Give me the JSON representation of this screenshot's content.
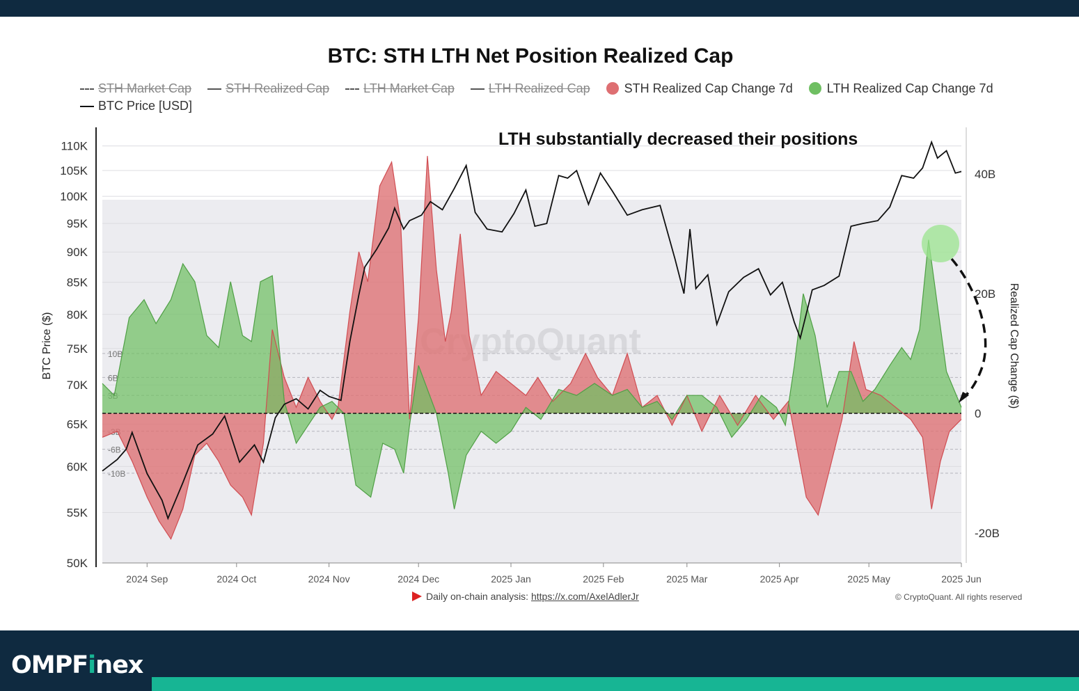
{
  "brand": {
    "prefix": "OMPF",
    "highlight": "i",
    "suffix": "nex"
  },
  "colors": {
    "sth": "#de6f72",
    "lth": "#6fbf62",
    "price": "#111111",
    "band": "#ececf0",
    "header": "#0f2a40",
    "accent": "#17b594"
  },
  "chart_data": {
    "type": "area",
    "title": "BTC: STH LTH Net Position Realized Cap",
    "annotation": "LTH substantially decreased their positions",
    "watermark": "CryptoQuant",
    "footnote": {
      "label": "Daily on-chain analysis:",
      "link": "https://x.com/AxelAdlerJr"
    },
    "copyright": "© CryptoQuant. All rights reserved",
    "legend": [
      {
        "label": "STH Market Cap",
        "style": "dash-dot",
        "active": false
      },
      {
        "label": "STH Realized Cap",
        "style": "solid",
        "active": false
      },
      {
        "label": "LTH Market Cap",
        "style": "dashed",
        "active": false
      },
      {
        "label": "LTH Realized Cap",
        "style": "solid",
        "active": false
      },
      {
        "label": "STH Realized Cap Change 7d",
        "style": "dot",
        "color": "#de6f72",
        "active": true
      },
      {
        "label": "LTH Realized Cap Change 7d",
        "style": "dot",
        "color": "#6fbf62",
        "active": true
      },
      {
        "label": "BTC Price [USD]",
        "style": "solid",
        "color": "#111111",
        "active": true
      }
    ],
    "ylabel_left": "BTC Price ($)",
    "ylabel_right": "Realized Cap Change ($)",
    "left_ticks": [
      "110K",
      "105K",
      "100K",
      "95K",
      "90K",
      "85K",
      "80K",
      "75K",
      "70K",
      "65K",
      "60K",
      "55K",
      "50K"
    ],
    "left_scale": "log",
    "ylim_left": [
      50000,
      112000
    ],
    "right_ticks": [
      "40B",
      "20B",
      "0",
      "-20B"
    ],
    "ylim_right": [
      -25,
      48
    ],
    "ref_lines": [
      "10B",
      "6B",
      "3B",
      "-3B",
      "-6B",
      "-10B"
    ],
    "x_ticks": [
      "2024 Sep",
      "2024 Oct",
      "2024 Nov",
      "2024 Dec",
      "2025 Jan",
      "2025 Feb",
      "2025 Mar",
      "2025 Apr",
      "2025 May",
      "2025 Jun"
    ],
    "xlim": [
      "2024-08-17",
      "2025-06-01"
    ],
    "series": [
      {
        "name": "BTC Price [USD]",
        "x": [
          "2024-08-17",
          "2024-08-22",
          "2024-08-25",
          "2024-08-27",
          "2024-09-01",
          "2024-09-06",
          "2024-09-08",
          "2024-09-13",
          "2024-09-18",
          "2024-09-23",
          "2024-09-27",
          "2024-10-02",
          "2024-10-07",
          "2024-10-10",
          "2024-10-14",
          "2024-10-17",
          "2024-10-21",
          "2024-10-25",
          "2024-10-29",
          "2024-11-01",
          "2024-11-05",
          "2024-11-08",
          "2024-11-11",
          "2024-11-13",
          "2024-11-17",
          "2024-11-21",
          "2024-11-23",
          "2024-11-26",
          "2024-11-28",
          "2024-12-02",
          "2024-12-05",
          "2024-12-09",
          "2024-12-13",
          "2024-12-17",
          "2024-12-20",
          "2024-12-24",
          "2024-12-29",
          "2025-01-02",
          "2025-01-06",
          "2025-01-09",
          "2025-01-13",
          "2025-01-17",
          "2025-01-20",
          "2025-01-23",
          "2025-01-27",
          "2025-01-31",
          "2025-02-04",
          "2025-02-09",
          "2025-02-14",
          "2025-02-20",
          "2025-02-25",
          "2025-02-28",
          "2025-03-02",
          "2025-03-04",
          "2025-03-08",
          "2025-03-11",
          "2025-03-15",
          "2025-03-20",
          "2025-03-25",
          "2025-03-29",
          "2025-04-02",
          "2025-04-06",
          "2025-04-08",
          "2025-04-12",
          "2025-04-16",
          "2025-04-21",
          "2025-04-25",
          "2025-04-29",
          "2025-05-04",
          "2025-05-08",
          "2025-05-12",
          "2025-05-16",
          "2025-05-19",
          "2025-05-22",
          "2025-05-24",
          "2025-05-27",
          "2025-05-30",
          "2025-06-01"
        ],
        "values": [
          59500,
          60800,
          62000,
          64000,
          59200,
          56300,
          54400,
          58200,
          62500,
          63800,
          66000,
          60500,
          62500,
          60500,
          65800,
          67500,
          68200,
          66900,
          69300,
          68500,
          68000,
          76000,
          83000,
          87500,
          90500,
          94200,
          97800,
          94000,
          95500,
          96500,
          99000,
          97500,
          101500,
          106000,
          97000,
          94000,
          93500,
          96800,
          101200,
          94500,
          95000,
          104000,
          103500,
          105000,
          98500,
          104500,
          101000,
          96500,
          97500,
          98300,
          88800,
          83200,
          94000,
          84000,
          86200,
          78500,
          83500,
          85800,
          87200,
          83000,
          85000,
          78800,
          76500,
          83800,
          84500,
          86000,
          94500,
          95000,
          95500,
          98000,
          104000,
          103500,
          105500,
          110800,
          107500,
          109000,
          104500,
          104800
        ]
      },
      {
        "name": "STH Realized Cap Change 7d",
        "x": [
          "2024-08-17",
          "2024-08-22",
          "2024-08-27",
          "2024-09-01",
          "2024-09-05",
          "2024-09-09",
          "2024-09-13",
          "2024-09-17",
          "2024-09-21",
          "2024-09-25",
          "2024-09-29",
          "2024-10-03",
          "2024-10-06",
          "2024-10-10",
          "2024-10-13",
          "2024-10-17",
          "2024-10-21",
          "2024-10-25",
          "2024-10-29",
          "2024-11-02",
          "2024-11-04",
          "2024-11-08",
          "2024-11-11",
          "2024-11-14",
          "2024-11-18",
          "2024-11-22",
          "2024-11-25",
          "2024-11-28",
          "2024-12-01",
          "2024-12-04",
          "2024-12-07",
          "2024-12-10",
          "2024-12-12",
          "2024-12-15",
          "2024-12-18",
          "2024-12-22",
          "2024-12-27",
          "2025-01-01",
          "2025-01-06",
          "2025-01-10",
          "2025-01-15",
          "2025-01-21",
          "2025-01-26",
          "2025-01-30",
          "2025-02-04",
          "2025-02-09",
          "2025-02-14",
          "2025-02-19",
          "2025-02-24",
          "2025-03-01",
          "2025-03-06",
          "2025-03-12",
          "2025-03-18",
          "2025-03-24",
          "2025-03-30",
          "2025-04-04",
          "2025-04-07",
          "2025-04-10",
          "2025-04-14",
          "2025-04-18",
          "2025-04-22",
          "2025-04-26",
          "2025-04-30",
          "2025-05-05",
          "2025-05-10",
          "2025-05-15",
          "2025-05-19",
          "2025-05-22",
          "2025-05-25",
          "2025-05-28",
          "2025-06-01"
        ],
        "values": [
          -4,
          -3,
          -8,
          -14,
          -18,
          -21,
          -16,
          -7,
          -5,
          -8,
          -12,
          -14,
          -17,
          -5,
          14,
          6,
          1,
          6,
          2,
          -1,
          1,
          17,
          27,
          22,
          38,
          42,
          32,
          -1,
          16,
          43,
          24,
          12,
          17,
          30,
          13,
          3,
          7,
          5,
          3,
          6,
          2,
          5,
          10,
          6,
          3,
          10,
          1,
          3,
          -2,
          3,
          -3,
          3,
          -2,
          3,
          -1,
          2,
          -6,
          -14,
          -17,
          -9,
          -1,
          12,
          4,
          3,
          1,
          -1,
          -4,
          -16,
          -8,
          -3,
          -1
        ]
      },
      {
        "name": "LTH Realized Cap Change 7d",
        "x": [
          "2024-08-17",
          "2024-08-21",
          "2024-08-26",
          "2024-08-31",
          "2024-09-04",
          "2024-09-09",
          "2024-09-13",
          "2024-09-17",
          "2024-09-21",
          "2024-09-25",
          "2024-09-29",
          "2024-10-03",
          "2024-10-06",
          "2024-10-09",
          "2024-10-13",
          "2024-10-17",
          "2024-10-21",
          "2024-10-25",
          "2024-10-29",
          "2024-11-02",
          "2024-11-04",
          "2024-11-06",
          "2024-11-10",
          "2024-11-15",
          "2024-11-19",
          "2024-11-23",
          "2024-11-26",
          "2024-11-28",
          "2024-12-01",
          "2024-12-04",
          "2024-12-07",
          "2024-12-11",
          "2024-12-13",
          "2024-12-17",
          "2024-12-22",
          "2024-12-27",
          "2025-01-01",
          "2025-01-06",
          "2025-01-11",
          "2025-01-17",
          "2025-01-23",
          "2025-01-29",
          "2025-02-04",
          "2025-02-09",
          "2025-02-14",
          "2025-02-19",
          "2025-02-24",
          "2025-03-01",
          "2025-03-06",
          "2025-03-11",
          "2025-03-16",
          "2025-03-21",
          "2025-03-26",
          "2025-03-31",
          "2025-04-03",
          "2025-04-06",
          "2025-04-09",
          "2025-04-13",
          "2025-04-17",
          "2025-04-21",
          "2025-04-25",
          "2025-04-29",
          "2025-05-03",
          "2025-05-08",
          "2025-05-12",
          "2025-05-15",
          "2025-05-18",
          "2025-05-21",
          "2025-05-24",
          "2025-05-27",
          "2025-06-01"
        ],
        "values": [
          5,
          3,
          16,
          19,
          15,
          19,
          25,
          22,
          13,
          11,
          22,
          13,
          12,
          22,
          23,
          2,
          -5,
          -2,
          1,
          2,
          1,
          0,
          -12,
          -14,
          -5,
          -6,
          -10,
          -2,
          8,
          4,
          0,
          -10,
          -16,
          -7,
          -3,
          -5,
          -3,
          1,
          -1,
          4,
          3,
          5,
          3,
          4,
          1,
          2,
          -1,
          3,
          3,
          1,
          -4,
          -1,
          3,
          1,
          -2,
          8,
          20,
          13,
          1,
          7,
          7,
          2,
          4,
          8,
          11,
          9,
          14,
          29,
          18,
          7,
          1
        ]
      }
    ]
  }
}
